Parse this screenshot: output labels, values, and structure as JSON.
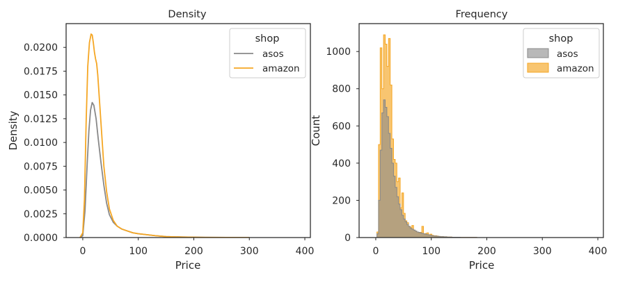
{
  "colors": {
    "asos": "#888888",
    "amazon": "#f5a623",
    "axes": "#262626"
  },
  "chart_data": [
    {
      "type": "line",
      "title": "Density",
      "xlabel": "Price",
      "ylabel": "Density",
      "xlim": [
        -30,
        410
      ],
      "ylim": [
        0,
        0.0225
      ],
      "xticks": [
        "0",
        "100",
        "200",
        "300",
        "400"
      ],
      "yticks": [
        "0.0000",
        "0.0025",
        "0.0050",
        "0.0075",
        "0.0100",
        "0.0125",
        "0.0150",
        "0.0175",
        "0.0200"
      ],
      "grid": false,
      "legend": {
        "title": "shop",
        "position": "top-right",
        "entries": [
          "asos",
          "amazon"
        ]
      },
      "series": [
        {
          "name": "asos",
          "x": [
            -5,
            0,
            4,
            8,
            11,
            14,
            17,
            20,
            24,
            28,
            33,
            38,
            43,
            48,
            55,
            62,
            70,
            80,
            90,
            100,
            115,
            130,
            150,
            180,
            220,
            300
          ],
          "y": [
            0.0,
            0.0002,
            0.0028,
            0.0078,
            0.0112,
            0.0134,
            0.0142,
            0.0139,
            0.0125,
            0.0103,
            0.0078,
            0.0055,
            0.0036,
            0.0024,
            0.0016,
            0.0012,
            0.0009,
            0.0007,
            0.0005,
            0.0004,
            0.0003,
            0.0002,
            0.0001,
            5e-05,
            2e-05,
            0.0
          ]
        },
        {
          "name": "amazon",
          "x": [
            -5,
            0,
            3,
            6,
            9,
            12,
            15,
            17,
            19,
            21,
            23,
            25,
            27,
            30,
            34,
            38,
            43,
            48,
            55,
            62,
            70,
            80,
            90,
            100,
            115,
            130,
            150,
            180,
            220,
            300
          ],
          "y": [
            0.0,
            0.0005,
            0.004,
            0.012,
            0.018,
            0.0205,
            0.0214,
            0.0213,
            0.0205,
            0.0195,
            0.0188,
            0.0183,
            0.0171,
            0.0145,
            0.011,
            0.0075,
            0.0048,
            0.003,
            0.0018,
            0.0012,
            0.0009,
            0.0007,
            0.0005,
            0.0004,
            0.0003,
            0.0002,
            0.0001,
            5e-05,
            2e-05,
            0.0
          ]
        }
      ]
    },
    {
      "type": "area",
      "title": "Frequency",
      "xlabel": "Price",
      "ylabel": "Count",
      "xlim": [
        -30,
        410
      ],
      "ylim": [
        0,
        1150
      ],
      "xticks": [
        "0",
        "100",
        "200",
        "300",
        "400"
      ],
      "yticks": [
        "0",
        "200",
        "400",
        "600",
        "800",
        "1000"
      ],
      "grid": false,
      "legend": {
        "title": "shop",
        "position": "top-right",
        "entries": [
          "asos",
          "amazon"
        ]
      },
      "bin_width": 3,
      "bin_start": 2,
      "series": [
        {
          "name": "asos",
          "counts": [
            20,
            200,
            470,
            670,
            740,
            700,
            650,
            560,
            480,
            400,
            330,
            270,
            220,
            180,
            150,
            120,
            100,
            85,
            70,
            60,
            50,
            45,
            40,
            35,
            30,
            28,
            25,
            22,
            20,
            18,
            16,
            14,
            12,
            10,
            9,
            8,
            7,
            6,
            5,
            5,
            4,
            4,
            3,
            3,
            3,
            2,
            2,
            2,
            2,
            2,
            1,
            1,
            1,
            1,
            1,
            1,
            1,
            1,
            1,
            1
          ]
        },
        {
          "name": "amazon",
          "counts": [
            30,
            500,
            1020,
            800,
            1090,
            1040,
            920,
            1070,
            820,
            530,
            420,
            400,
            300,
            320,
            160,
            240,
            130,
            90,
            80,
            60,
            55,
            65,
            40,
            35,
            30,
            25,
            28,
            60,
            20,
            22,
            25,
            15,
            18,
            12,
            10,
            10,
            8,
            6,
            5,
            5,
            4,
            4,
            3,
            3,
            3,
            2,
            2,
            2,
            2,
            2,
            1,
            1,
            1,
            1,
            1,
            1,
            1,
            1,
            1,
            1
          ]
        }
      ]
    }
  ]
}
